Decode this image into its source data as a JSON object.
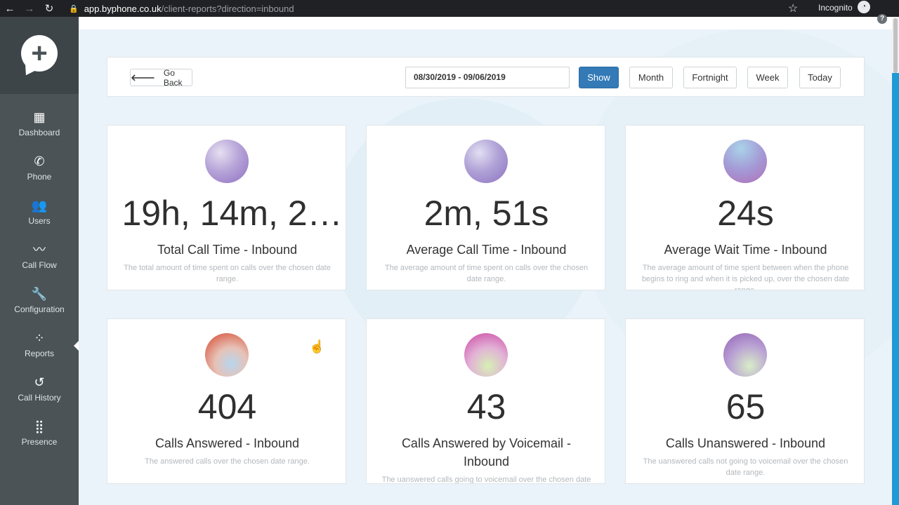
{
  "browser": {
    "url_host": "app.byphone.co.uk",
    "url_path": "/client-reports?direction=inbound",
    "profile_label": "Incognito"
  },
  "sidebar": {
    "items": [
      {
        "label": "Dashboard",
        "icon": "dashboard-icon",
        "glyph": "▦"
      },
      {
        "label": "Phone",
        "icon": "phone-icon",
        "glyph": "✆"
      },
      {
        "label": "Users",
        "icon": "users-icon",
        "glyph": "👥"
      },
      {
        "label": "Call Flow",
        "icon": "call-flow-icon",
        "glyph": "〰"
      },
      {
        "label": "Configuration",
        "icon": "wrench-icon",
        "glyph": "🔧"
      },
      {
        "label": "Reports",
        "icon": "reports-icon",
        "glyph": "⁘"
      },
      {
        "label": "Call History",
        "icon": "history-icon",
        "glyph": "↺"
      },
      {
        "label": "Presence",
        "icon": "grid-icon",
        "glyph": "⣿"
      }
    ],
    "active": "Reports"
  },
  "toolbar": {
    "go_back_label": "Go Back",
    "date_range": "08/30/2019 - 09/06/2019",
    "show_label": "Show",
    "month_label": "Month",
    "fortnight_label": "Fortnight",
    "week_label": "Week",
    "today_label": "Today"
  },
  "cards": [
    {
      "value": "19h, 14m, 2…",
      "title": "Total Call Time - Inbound",
      "desc": "The total amount of time spent on calls over the chosen date range."
    },
    {
      "value": "2m, 51s",
      "title": "Average Call Time - Inbound",
      "desc": "The average amount of time spent on calls over the chosen date range."
    },
    {
      "value": "24s",
      "title": "Average Wait Time - Inbound",
      "desc": "The average amount of time spent between when the phone begins to ring and when it is picked up, over the chosen date range."
    },
    {
      "value": "404",
      "title": "Calls Answered - Inbound",
      "desc": "The answered calls over the chosen date range."
    },
    {
      "value": "43",
      "title": "Calls Answered by Voicemail - Inbound",
      "desc": "The uanswered calls going to voicemail over the chosen date range."
    },
    {
      "value": "65",
      "title": "Calls Unanswered - Inbound",
      "desc": "The uanswered calls not going to voicemail over the chosen date range."
    }
  ],
  "colors": {
    "sidebar": "#4b5357",
    "primary_button": "#337ab7",
    "accent_edge": "#1e9ad6"
  }
}
